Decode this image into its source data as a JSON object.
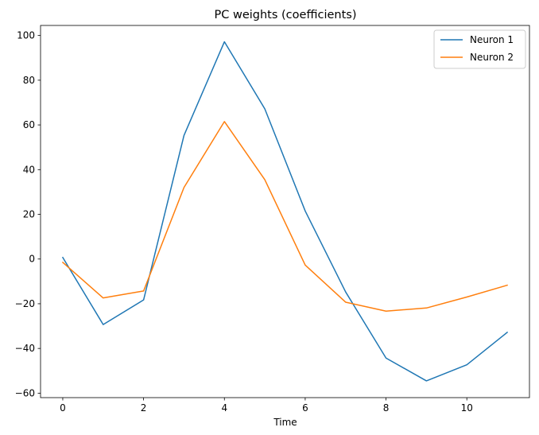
{
  "chart_data": {
    "type": "line",
    "title": "PC weights (coefficients)",
    "xlabel": "Time",
    "ylabel": "",
    "x": [
      0,
      1,
      2,
      3,
      4,
      5,
      6,
      7,
      8,
      9,
      10,
      11
    ],
    "xlim": [
      -0.55,
      11.55
    ],
    "ylim": [
      -62.0,
      104.5
    ],
    "xticks": [
      0,
      2,
      4,
      6,
      8,
      10
    ],
    "yticks": [
      -60,
      -40,
      -20,
      0,
      20,
      40,
      60,
      80,
      100
    ],
    "xtick_labels": [
      "0",
      "2",
      "4",
      "6",
      "8",
      "10"
    ],
    "ytick_labels": [
      "−60",
      "−40",
      "−20",
      "0",
      "20",
      "40",
      "60",
      "80",
      "100"
    ],
    "grid": false,
    "legend_position": "top-right",
    "series": [
      {
        "name": "Neuron 1",
        "color": "#1f77b4",
        "values": [
          0.7,
          -29.3,
          -18.3,
          55.3,
          97.2,
          67.2,
          21.5,
          -14.7,
          -44.3,
          -54.5,
          -47.3,
          -32.8
        ]
      },
      {
        "name": "Neuron 2",
        "color": "#ff7f0e",
        "values": [
          -1.5,
          -17.4,
          -14.3,
          32.0,
          61.5,
          35.5,
          -2.7,
          -19.3,
          -23.3,
          -21.9,
          -17.0,
          -11.7
        ]
      }
    ]
  }
}
